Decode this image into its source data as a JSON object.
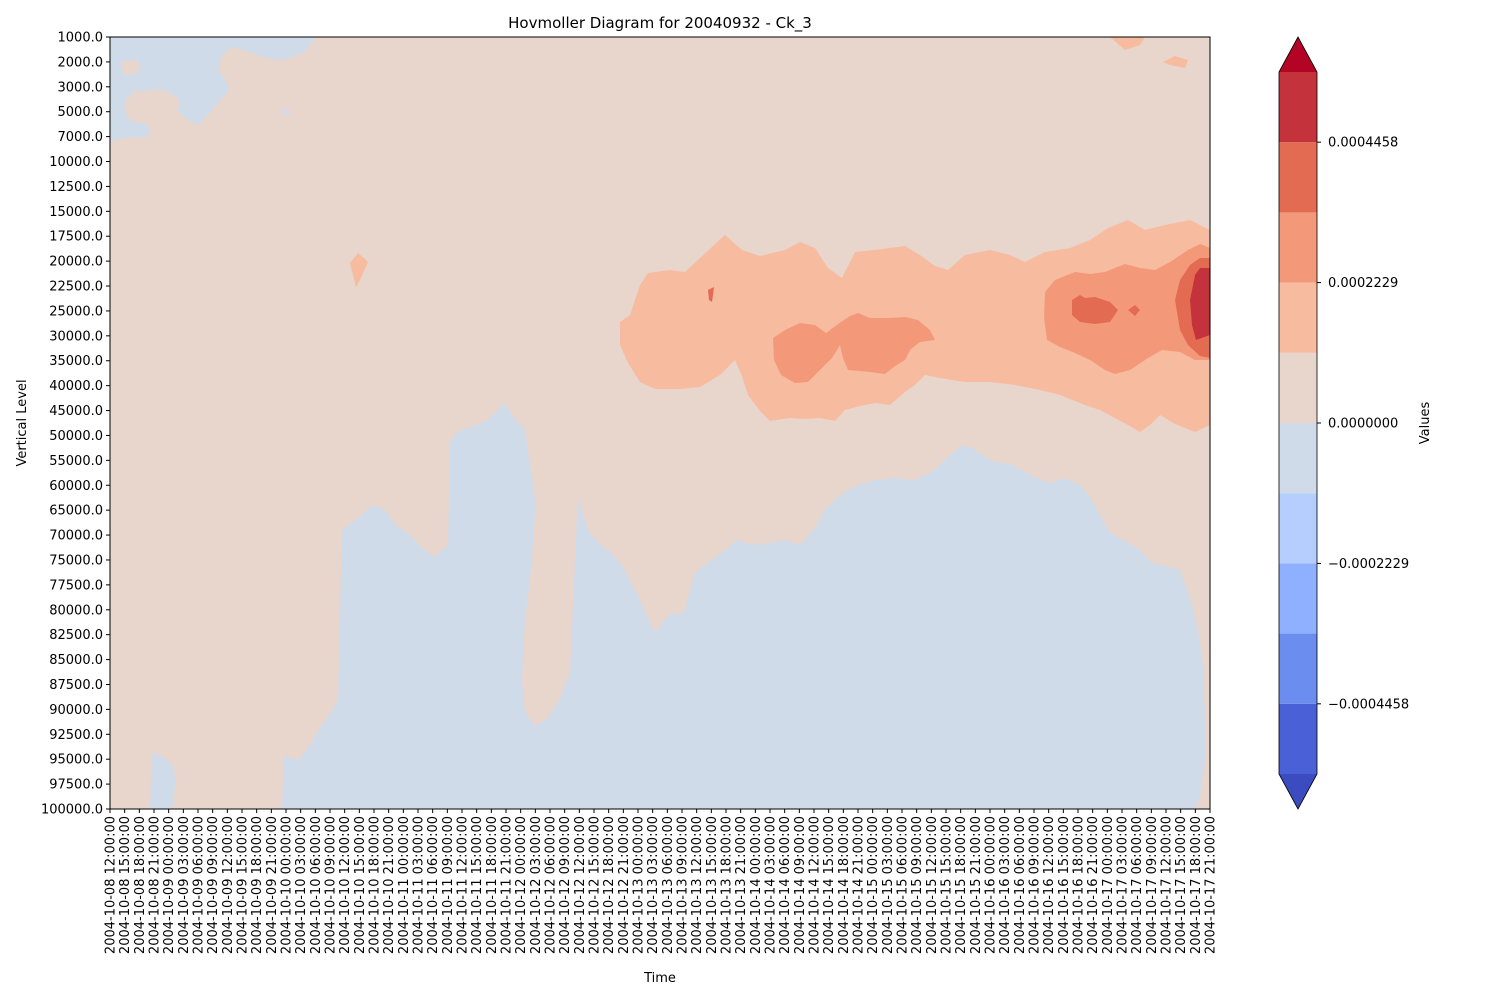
{
  "chart_data": {
    "type": "heatmap",
    "subtype": "filled-contour",
    "title": "Hovmoller Diagram for 20040932 - Ck_3",
    "xlabel": "Time",
    "ylabel": "Vertical Level",
    "x": [
      "2004-10-08 12:00:00",
      "2004-10-08 15:00:00",
      "2004-10-08 18:00:00",
      "2004-10-08 21:00:00",
      "2004-10-09 00:00:00",
      "2004-10-09 03:00:00",
      "2004-10-09 06:00:00",
      "2004-10-09 09:00:00",
      "2004-10-09 12:00:00",
      "2004-10-09 15:00:00",
      "2004-10-09 18:00:00",
      "2004-10-09 21:00:00",
      "2004-10-10 00:00:00",
      "2004-10-10 03:00:00",
      "2004-10-10 06:00:00",
      "2004-10-10 09:00:00",
      "2004-10-10 12:00:00",
      "2004-10-10 15:00:00",
      "2004-10-10 18:00:00",
      "2004-10-10 21:00:00",
      "2004-10-11 00:00:00",
      "2004-10-11 03:00:00",
      "2004-10-11 06:00:00",
      "2004-10-11 09:00:00",
      "2004-10-11 12:00:00",
      "2004-10-11 15:00:00",
      "2004-10-11 18:00:00",
      "2004-10-11 21:00:00",
      "2004-10-12 00:00:00",
      "2004-10-12 03:00:00",
      "2004-10-12 06:00:00",
      "2004-10-12 09:00:00",
      "2004-10-12 12:00:00",
      "2004-10-12 15:00:00",
      "2004-10-12 18:00:00",
      "2004-10-12 21:00:00",
      "2004-10-13 00:00:00",
      "2004-10-13 03:00:00",
      "2004-10-13 06:00:00",
      "2004-10-13 09:00:00",
      "2004-10-13 12:00:00",
      "2004-10-13 15:00:00",
      "2004-10-13 18:00:00",
      "2004-10-13 21:00:00",
      "2004-10-14 00:00:00",
      "2004-10-14 03:00:00",
      "2004-10-14 06:00:00",
      "2004-10-14 09:00:00",
      "2004-10-14 12:00:00",
      "2004-10-14 15:00:00",
      "2004-10-14 18:00:00",
      "2004-10-14 21:00:00",
      "2004-10-15 00:00:00",
      "2004-10-15 03:00:00",
      "2004-10-15 06:00:00",
      "2004-10-15 09:00:00",
      "2004-10-15 12:00:00",
      "2004-10-15 15:00:00",
      "2004-10-15 18:00:00",
      "2004-10-15 21:00:00",
      "2004-10-16 00:00:00",
      "2004-10-16 03:00:00",
      "2004-10-16 06:00:00",
      "2004-10-16 09:00:00",
      "2004-10-16 12:00:00",
      "2004-10-16 15:00:00",
      "2004-10-16 18:00:00",
      "2004-10-16 21:00:00",
      "2004-10-17 00:00:00",
      "2004-10-17 03:00:00",
      "2004-10-17 06:00:00",
      "2004-10-17 09:00:00",
      "2004-10-17 12:00:00",
      "2004-10-17 15:00:00",
      "2004-10-17 18:00:00",
      "2004-10-17 21:00:00"
    ],
    "y": [
      "1000.0",
      "2000.0",
      "3000.0",
      "5000.0",
      "7000.0",
      "10000.0",
      "12500.0",
      "15000.0",
      "17500.0",
      "20000.0",
      "22500.0",
      "25000.0",
      "30000.0",
      "35000.0",
      "40000.0",
      "45000.0",
      "50000.0",
      "55000.0",
      "60000.0",
      "65000.0",
      "70000.0",
      "75000.0",
      "77500.0",
      "80000.0",
      "82500.0",
      "85000.0",
      "87500.0",
      "90000.0",
      "92500.0",
      "95000.0",
      "97500.0",
      "100000.0"
    ],
    "y_inverted": true,
    "colorbar": {
      "label": "Values",
      "colormap": "coolwarm",
      "levels": [
        -0.0005572,
        -0.0004458,
        -0.0003343,
        -0.0002229,
        -0.0001114,
        0.0,
        0.0001114,
        0.0002229,
        0.0003343,
        0.0004458,
        0.0005572
      ],
      "tick_values": [
        -0.0004458,
        -0.0002229,
        0.0,
        0.0002229,
        0.0004458
      ],
      "tick_labels": [
        "−0.0004458",
        "−0.0002229",
        "0.0000000",
        "0.0002229",
        "0.0004458"
      ],
      "extend": "both",
      "colors": [
        "#3b4cc0",
        "#4a60d6",
        "#6b8df0",
        "#8eb0fe",
        "#b5cefd",
        "#d0dbea",
        "#e8d6cc",
        "#f7bba0",
        "#f39979",
        "#e26b52",
        "#c4333b",
        "#b40426"
      ],
      "location": "right"
    },
    "features": [
      {
        "name": "negative-region-upper-left",
        "sign": "negative",
        "time_range": [
          "2004-10-08 12:00:00",
          "2004-10-10 03:00:00"
        ],
        "level_range": [
          "1000.0",
          "7000.0"
        ]
      },
      {
        "name": "negative-region-lower",
        "sign": "negative",
        "time_range": [
          "2004-10-10 00:00:00",
          "2004-10-17 21:00:00"
        ],
        "level_range": [
          "45000.0",
          "100000.0"
        ]
      },
      {
        "name": "positive-core-upper-right",
        "sign": "positive",
        "time_range": [
          "2004-10-13 00:00:00",
          "2004-10-17 21:00:00"
        ],
        "level_range": [
          "17500.0",
          "50000.0"
        ],
        "peak_value": 0.0005,
        "peak_time": "2004-10-17 21:00:00",
        "peak_level": "25000.0"
      }
    ]
  }
}
